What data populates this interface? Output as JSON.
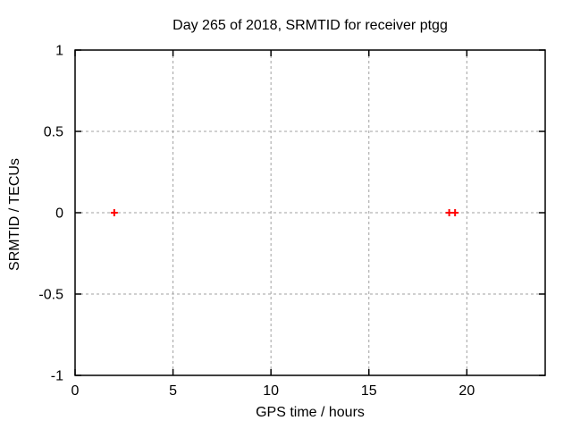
{
  "chart_data": {
    "type": "scatter",
    "title": "Day 265 of 2018, SRMTID for receiver ptgg",
    "xlabel": "GPS time / hours",
    "ylabel": "SRMTID / TECUs",
    "xlim": [
      0,
      24
    ],
    "ylim": [
      -1,
      1
    ],
    "xticks": [
      0,
      5,
      10,
      15,
      20
    ],
    "yticks": [
      -1,
      -0.5,
      0,
      0.5,
      1
    ],
    "grid": true,
    "legend": "none",
    "series": [
      {
        "name": "SRMTID",
        "marker": "plus",
        "color": "#ff0000",
        "points": [
          [
            2.0,
            0.0
          ],
          [
            19.1,
            0.0
          ],
          [
            19.4,
            0.0
          ]
        ]
      }
    ],
    "colors": {
      "background": "#ffffff",
      "axis": "#000000",
      "grid": "#a0a0a0",
      "text": "#000000"
    }
  }
}
